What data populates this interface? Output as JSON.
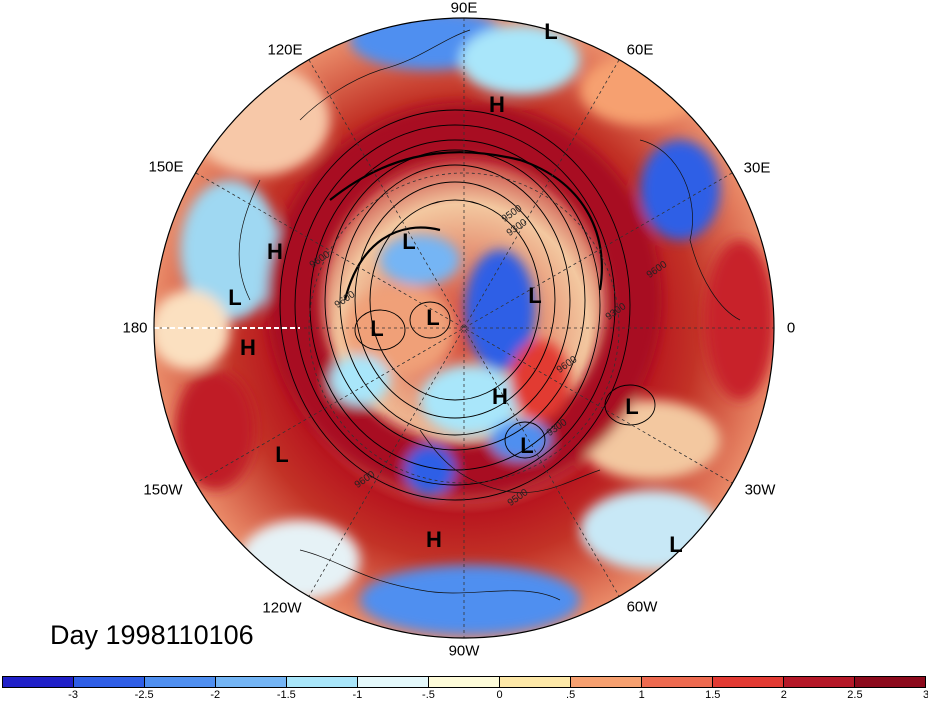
{
  "map": {
    "projection": "north polar stereographic",
    "longitude_labels": [
      "90E",
      "60E",
      "30E",
      "0",
      "30W",
      "60W",
      "90W",
      "120W",
      "150W",
      "180",
      "150E",
      "120E"
    ],
    "pressure_systems": [
      {
        "symbol": "L",
        "location": "north of 60E meridian near rim"
      },
      {
        "symbol": "H",
        "location": "east Siberia near 80E"
      },
      {
        "symbol": "H",
        "location": "Kamchatka"
      },
      {
        "symbol": "L",
        "location": "west of dateline"
      },
      {
        "symbol": "H",
        "location": "north Pacific near dateline"
      },
      {
        "symbol": "L",
        "location": "Gulf of Alaska"
      },
      {
        "symbol": "L",
        "location": "Siberian Arctic"
      },
      {
        "symbol": "L",
        "location": "Laptev Sea"
      },
      {
        "symbol": "L",
        "location": "Beaufort Sea"
      },
      {
        "symbol": "L",
        "location": "Barents / Kara Sea"
      },
      {
        "symbol": "H",
        "location": "Baffin Bay"
      },
      {
        "symbol": "L",
        "location": "Labrador Sea"
      },
      {
        "symbol": "L",
        "location": "Iceland"
      },
      {
        "symbol": "H",
        "location": "central North America"
      },
      {
        "symbol": "L",
        "location": "mid Atlantic"
      }
    ],
    "contour_labels": [
      "9600",
      "9600",
      "9300",
      "9600",
      "9300",
      "9600",
      "9300",
      "9500",
      "9600",
      "9500"
    ]
  },
  "day_label": "Day 1998110106",
  "colorbar": {
    "colors": [
      "#2020c8",
      "#2f5ee6",
      "#4f8ff0",
      "#74b5f5",
      "#a9e6fa",
      "#e4f8fb",
      "#fdfbd9",
      "#fde8a8",
      "#f6a070",
      "#ed6a50",
      "#e23a33",
      "#b51828",
      "#8c0a1c"
    ],
    "tick_labels": [
      "-3",
      "-2.5",
      "-2",
      "-1.5",
      "-1",
      "-.5",
      "0",
      ".5",
      "1",
      "1.5",
      "2",
      "2.5",
      "3"
    ]
  }
}
